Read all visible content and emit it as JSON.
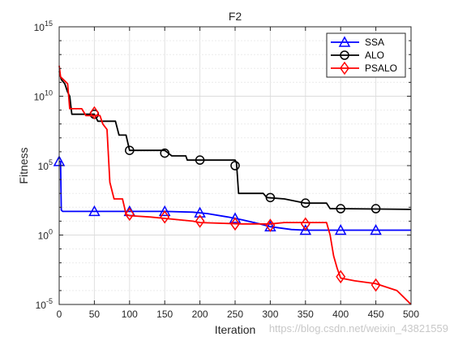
{
  "chart_data": {
    "type": "line",
    "title": "F2",
    "xlabel": "Iteration",
    "ylabel": "Fitness",
    "xlim": [
      0,
      500
    ],
    "ylim_exponent": [
      -5,
      15
    ],
    "yscale": "log",
    "grid": true,
    "legend_position": "top-right",
    "x_ticks": [
      "0",
      "50",
      "100",
      "150",
      "200",
      "250",
      "300",
      "350",
      "400",
      "450",
      "500"
    ],
    "y_ticks": [
      {
        "base": "10",
        "exp": "-5"
      },
      {
        "base": "10",
        "exp": "0"
      },
      {
        "base": "10",
        "exp": "5"
      },
      {
        "base": "10",
        "exp": "10"
      },
      {
        "base": "10",
        "exp": "15"
      }
    ],
    "series": [
      {
        "name": "SSA",
        "color": "#0000ff",
        "marker": "triangle",
        "log10_y_points": [
          [
            0,
            5.3
          ],
          [
            2,
            5.3
          ],
          [
            3,
            1.8
          ],
          [
            5,
            1.7
          ],
          [
            100,
            1.7
          ],
          [
            150,
            1.7
          ],
          [
            190,
            1.65
          ],
          [
            210,
            1.55
          ],
          [
            240,
            1.3
          ],
          [
            260,
            1.1
          ],
          [
            285,
            0.8
          ],
          [
            300,
            0.6
          ],
          [
            330,
            0.4
          ],
          [
            350,
            0.35
          ],
          [
            400,
            0.35
          ],
          [
            450,
            0.35
          ],
          [
            500,
            0.35
          ]
        ],
        "log10_y_markers": [
          [
            0,
            5.3
          ],
          [
            50,
            1.7
          ],
          [
            100,
            1.7
          ],
          [
            150,
            1.7
          ],
          [
            200,
            1.6
          ],
          [
            250,
            1.2
          ],
          [
            300,
            0.6
          ],
          [
            350,
            0.35
          ],
          [
            400,
            0.35
          ],
          [
            450,
            0.35
          ]
        ]
      },
      {
        "name": "ALO",
        "color": "#000000",
        "marker": "circle",
        "log10_y_points": [
          [
            0,
            11.8
          ],
          [
            3,
            11.2
          ],
          [
            8,
            10.9
          ],
          [
            12,
            10.3
          ],
          [
            15,
            10.0
          ],
          [
            18,
            8.7
          ],
          [
            50,
            8.7
          ],
          [
            55,
            8.2
          ],
          [
            80,
            8.2
          ],
          [
            85,
            7.2
          ],
          [
            95,
            7.2
          ],
          [
            100,
            6.1
          ],
          [
            150,
            6.1
          ],
          [
            160,
            5.7
          ],
          [
            180,
            5.7
          ],
          [
            182,
            5.4
          ],
          [
            250,
            5.4
          ],
          [
            252,
            5.2
          ],
          [
            255,
            3.0
          ],
          [
            290,
            3.0
          ],
          [
            295,
            2.7
          ],
          [
            320,
            2.6
          ],
          [
            350,
            2.3
          ],
          [
            380,
            2.3
          ],
          [
            385,
            1.9
          ],
          [
            400,
            1.9
          ],
          [
            500,
            1.85
          ]
        ],
        "log10_y_markers": [
          [
            50,
            8.7
          ],
          [
            100,
            6.1
          ],
          [
            150,
            5.9
          ],
          [
            200,
            5.4
          ],
          [
            250,
            5.0
          ],
          [
            300,
            2.7
          ],
          [
            350,
            2.3
          ],
          [
            400,
            1.9
          ],
          [
            450,
            1.9
          ]
        ]
      },
      {
        "name": "PSALO",
        "color": "#ff0000",
        "marker": "diamond",
        "log10_y_points": [
          [
            0,
            12.2
          ],
          [
            2,
            11.4
          ],
          [
            8,
            11.1
          ],
          [
            12,
            10.9
          ],
          [
            15,
            9.1
          ],
          [
            32,
            9.1
          ],
          [
            38,
            8.6
          ],
          [
            58,
            8.6
          ],
          [
            62,
            8.0
          ],
          [
            68,
            7.6
          ],
          [
            72,
            3.8
          ],
          [
            78,
            2.6
          ],
          [
            90,
            2.6
          ],
          [
            95,
            1.5
          ],
          [
            100,
            1.4
          ],
          [
            130,
            1.3
          ],
          [
            150,
            1.2
          ],
          [
            190,
            1.0
          ],
          [
            200,
            0.9
          ],
          [
            260,
            0.8
          ],
          [
            300,
            0.8
          ],
          [
            320,
            0.9
          ],
          [
            350,
            0.9
          ],
          [
            380,
            0.9
          ],
          [
            385,
            0.0
          ],
          [
            390,
            -1.5
          ],
          [
            395,
            -2.4
          ],
          [
            400,
            -3.1
          ],
          [
            420,
            -3.3
          ],
          [
            450,
            -3.5
          ],
          [
            480,
            -4.0
          ],
          [
            490,
            -4.5
          ],
          [
            500,
            -5.0
          ]
        ],
        "log10_y_markers": [
          [
            50,
            8.8
          ],
          [
            100,
            1.5
          ],
          [
            150,
            1.3
          ],
          [
            200,
            1.0
          ],
          [
            250,
            0.8
          ],
          [
            300,
            0.7
          ],
          [
            350,
            0.8
          ],
          [
            400,
            -3.0
          ],
          [
            450,
            -3.6
          ]
        ]
      }
    ]
  },
  "watermark": "https://blog.csdn.net/weixin_43821559"
}
